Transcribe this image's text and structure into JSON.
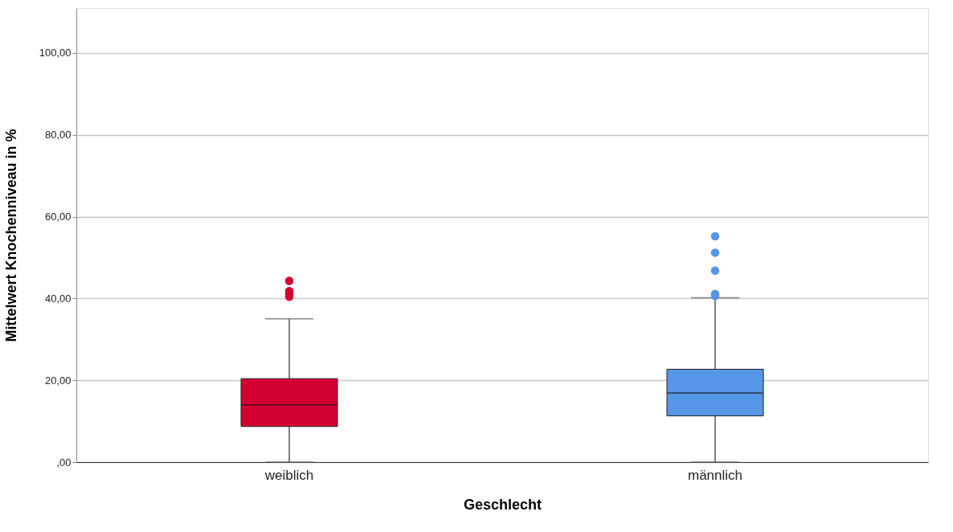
{
  "chart_data": {
    "type": "box",
    "xlabel": "Geschlecht",
    "ylabel": "Mittelwert Knochenniveau in %",
    "categories": [
      "weiblich",
      "männlich"
    ],
    "colors": [
      "#d50032",
      "#5596e6"
    ],
    "boxes": [
      {
        "low": 0,
        "q1": 8.7,
        "median": 14.0,
        "q3": 20.4,
        "high": 35.0,
        "outliers": [
          44.3,
          41.8,
          41.0,
          40.4
        ]
      },
      {
        "low": 0,
        "q1": 11.3,
        "median": 16.9,
        "q3": 22.7,
        "high": 40.2,
        "outliers": [
          55.2,
          51.2,
          46.8,
          41.1,
          40.6
        ]
      }
    ],
    "ylim": [
      0,
      111
    ],
    "yticks": [
      {
        "value": 0,
        "label": ",00"
      },
      {
        "value": 20,
        "label": "20,00"
      },
      {
        "value": 40,
        "label": "40,00"
      },
      {
        "value": 60,
        "label": "60,00"
      },
      {
        "value": 80,
        "label": "80,00"
      },
      {
        "value": 100,
        "label": "100,00"
      }
    ],
    "grid": "y",
    "legend": false
  }
}
